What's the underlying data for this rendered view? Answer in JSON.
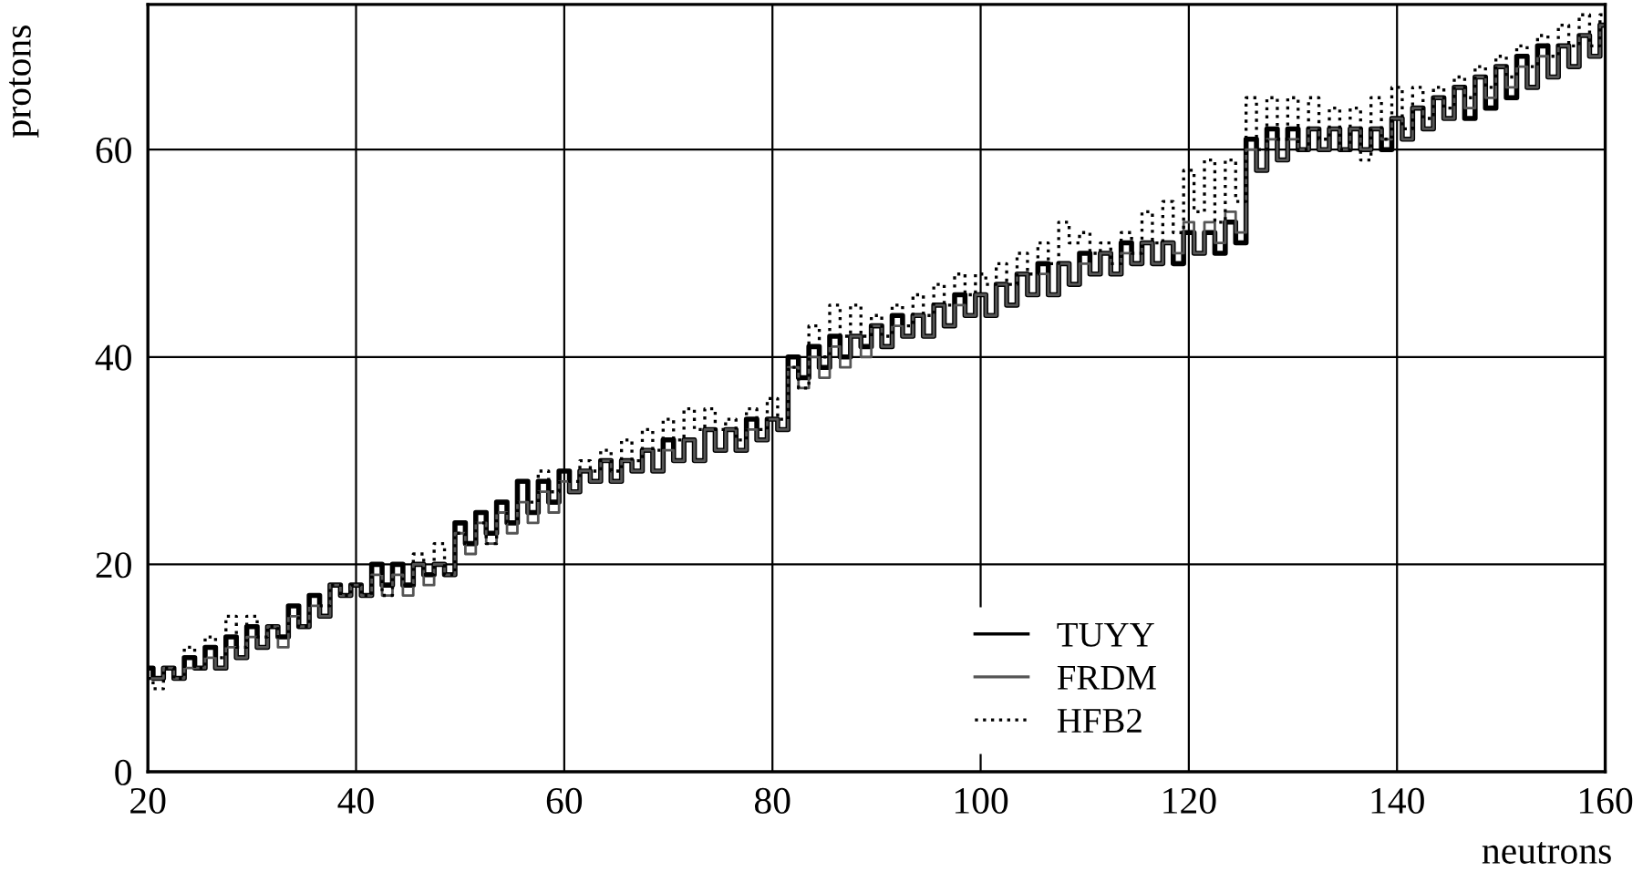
{
  "chart_data": {
    "type": "step",
    "xlabel": "neutrons",
    "ylabel": "protons",
    "xlim": [
      20,
      160
    ],
    "ylim": [
      0,
      74
    ],
    "xticks": [
      20,
      40,
      60,
      80,
      100,
      120,
      140,
      160
    ],
    "yticks": [
      0,
      20,
      40,
      60
    ],
    "grid": true,
    "legend": "bottom",
    "marker": "none",
    "x": [
      20,
      21,
      22,
      23,
      24,
      25,
      26,
      27,
      28,
      29,
      30,
      31,
      32,
      33,
      34,
      35,
      36,
      37,
      38,
      39,
      40,
      41,
      42,
      43,
      44,
      45,
      46,
      47,
      48,
      49,
      50,
      51,
      52,
      53,
      54,
      55,
      56,
      57,
      58,
      59,
      60,
      61,
      62,
      63,
      64,
      65,
      66,
      67,
      68,
      69,
      70,
      71,
      72,
      73,
      74,
      75,
      76,
      77,
      78,
      79,
      80,
      81,
      82,
      83,
      84,
      85,
      86,
      87,
      88,
      89,
      90,
      91,
      92,
      93,
      94,
      95,
      96,
      97,
      98,
      99,
      100,
      101,
      102,
      103,
      104,
      105,
      106,
      107,
      108,
      109,
      110,
      111,
      112,
      113,
      114,
      115,
      116,
      117,
      118,
      119,
      120,
      121,
      122,
      123,
      124,
      125,
      126,
      127,
      128,
      129,
      130,
      131,
      132,
      133,
      134,
      135,
      136,
      137,
      138,
      139,
      140,
      141,
      142,
      143,
      144,
      145,
      146,
      147,
      148,
      149,
      150,
      151,
      152,
      153,
      154,
      155,
      156,
      157,
      158,
      159,
      160
    ],
    "series": [
      {
        "name": "TUYY",
        "color": "#000000",
        "line_style": "solid",
        "values": [
          10,
          9,
          10,
          9,
          11,
          10,
          12,
          10,
          13,
          11,
          14,
          12,
          14,
          13,
          16,
          14,
          17,
          15,
          18,
          17,
          18,
          17,
          20,
          18,
          20,
          18,
          20,
          19,
          20,
          19,
          24,
          22,
          25,
          23,
          26,
          24,
          28,
          25,
          28,
          26,
          29,
          27,
          29,
          28,
          30,
          28,
          30,
          29,
          31,
          29,
          32,
          30,
          32,
          30,
          33,
          31,
          33,
          31,
          34,
          32,
          34,
          33,
          40,
          38,
          41,
          39,
          42,
          40,
          42,
          41,
          43,
          41,
          44,
          42,
          44,
          42,
          45,
          43,
          46,
          44,
          46,
          44,
          47,
          45,
          48,
          46,
          49,
          46,
          49,
          47,
          50,
          48,
          50,
          48,
          51,
          49,
          51,
          49,
          51,
          49,
          52,
          50,
          52,
          50,
          53,
          51,
          61,
          58,
          62,
          59,
          62,
          60,
          62,
          60,
          62,
          60,
          62,
          60,
          62,
          60,
          63,
          61,
          64,
          62,
          65,
          63,
          66,
          63,
          67,
          64,
          68,
          65,
          69,
          66,
          70,
          67,
          70,
          68,
          71,
          69,
          72
        ]
      },
      {
        "name": "FRDM",
        "color": "#555555",
        "line_style": "solid",
        "values": [
          9,
          9,
          10,
          9,
          10,
          10,
          11,
          10,
          12,
          11,
          13,
          12,
          14,
          12,
          15,
          14,
          16,
          15,
          18,
          17,
          18,
          17,
          19,
          17,
          19,
          17,
          20,
          18,
          20,
          19,
          23,
          21,
          24,
          22,
          25,
          23,
          26,
          24,
          27,
          25,
          28,
          27,
          29,
          28,
          30,
          28,
          30,
          29,
          31,
          29,
          31,
          30,
          32,
          30,
          33,
          31,
          33,
          31,
          33,
          32,
          34,
          33,
          39,
          37,
          40,
          38,
          41,
          39,
          42,
          40,
          43,
          41,
          43,
          42,
          44,
          42,
          45,
          43,
          45,
          44,
          46,
          44,
          47,
          45,
          48,
          46,
          48,
          46,
          49,
          47,
          49,
          48,
          50,
          48,
          50,
          49,
          51,
          49,
          51,
          50,
          53,
          50,
          53,
          51,
          54,
          52,
          60,
          58,
          61,
          59,
          61,
          60,
          62,
          60,
          62,
          60,
          62,
          60,
          62,
          61,
          63,
          61,
          64,
          62,
          65,
          63,
          66,
          64,
          67,
          65,
          68,
          66,
          68,
          66,
          69,
          67,
          70,
          68,
          71,
          69,
          72
        ]
      },
      {
        "name": "HFB2",
        "color": "#000000",
        "line_style": "dotted",
        "values": [
          9,
          8,
          10,
          9,
          12,
          10,
          13,
          11,
          15,
          12,
          15,
          13,
          14,
          13,
          16,
          14,
          17,
          16,
          18,
          17,
          18,
          17,
          20,
          17,
          20,
          18,
          21,
          19,
          22,
          19,
          23,
          22,
          24,
          22,
          26,
          24,
          28,
          26,
          29,
          27,
          29,
          28,
          30,
          29,
          31,
          29,
          32,
          30,
          33,
          31,
          34,
          32,
          35,
          33,
          35,
          33,
          34,
          32,
          35,
          33,
          36,
          34,
          39,
          37,
          43,
          40,
          45,
          42,
          45,
          42,
          44,
          42,
          45,
          43,
          46,
          44,
          47,
          45,
          48,
          46,
          48,
          47,
          49,
          47,
          50,
          48,
          51,
          49,
          53,
          51,
          52,
          50,
          51,
          49,
          52,
          50,
          54,
          51,
          55,
          52,
          58,
          54,
          59,
          53,
          59,
          55,
          65,
          60,
          65,
          61,
          65,
          60,
          65,
          61,
          64,
          60,
          64,
          59,
          65,
          61,
          66,
          62,
          66,
          63,
          66,
          64,
          67,
          65,
          68,
          66,
          69,
          67,
          70,
          68,
          71,
          69,
          72,
          70,
          73,
          70,
          73
        ]
      }
    ]
  }
}
